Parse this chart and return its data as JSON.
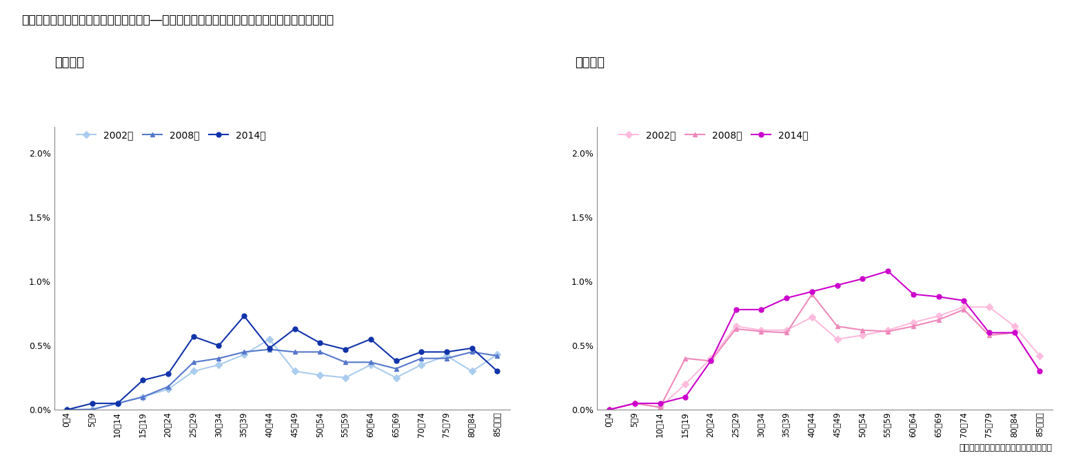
{
  "title": "図表２　患者割合（＝総患者数／人口）―神経症性障害，ストレス関連障害及び身体表現性障害",
  "subtitle_male": "【男性】",
  "subtitle_female": "【女性】",
  "caption": "（資料）　厠生労働省「患者調査」各年",
  "x_labels": [
    "0～4",
    "5～9",
    "10～14",
    "15～19",
    "20～24",
    "25～29",
    "30～34",
    "35～39",
    "40～44",
    "45～49",
    "50～54",
    "55～59",
    "60～64",
    "65～69",
    "70～74",
    "75～79",
    "80～84",
    "85歳以上"
  ],
  "male": {
    "2002": [
      0.0,
      0.003,
      0.05,
      0.1,
      0.16,
      0.3,
      0.35,
      0.43,
      0.55,
      0.3,
      0.27,
      0.25,
      0.35,
      0.25,
      0.35,
      0.42,
      0.3,
      0.43
    ],
    "2008": [
      0.0,
      0.003,
      0.05,
      0.1,
      0.18,
      0.37,
      0.4,
      0.45,
      0.47,
      0.45,
      0.45,
      0.37,
      0.37,
      0.32,
      0.4,
      0.4,
      0.45,
      0.42
    ],
    "2014": [
      0.0,
      0.05,
      0.05,
      0.23,
      0.28,
      0.57,
      0.5,
      0.73,
      0.48,
      0.63,
      0.52,
      0.47,
      0.55,
      0.38,
      0.45,
      0.45,
      0.48,
      0.3
    ]
  },
  "female": {
    "2002": [
      0.001,
      0.05,
      0.02,
      0.2,
      0.4,
      0.65,
      0.62,
      0.62,
      0.72,
      0.55,
      0.58,
      0.62,
      0.68,
      0.73,
      0.8,
      0.8,
      0.65,
      0.42
    ],
    "2008": [
      0.001,
      0.05,
      0.02,
      0.4,
      0.38,
      0.63,
      0.61,
      0.6,
      0.9,
      0.65,
      0.62,
      0.61,
      0.65,
      0.7,
      0.78,
      0.58,
      0.6,
      0.3
    ],
    "2014": [
      0.001,
      0.05,
      0.05,
      0.1,
      0.38,
      0.78,
      0.78,
      0.87,
      0.92,
      0.97,
      1.02,
      1.08,
      0.9,
      0.88,
      0.85,
      0.6,
      0.6,
      0.3
    ]
  },
  "male_colors": {
    "2002": "#AACCEE",
    "2008": "#5577CC",
    "2014": "#1133AA"
  },
  "female_colors": {
    "2002": "#FFBBDD",
    "2008": "#EE88BB",
    "2014": "#CC00CC"
  },
  "male_markers": {
    "2002": "D",
    "2008": "^",
    "2014": "o"
  },
  "female_markers": {
    "2002": "D",
    "2008": "^",
    "2014": "o"
  }
}
